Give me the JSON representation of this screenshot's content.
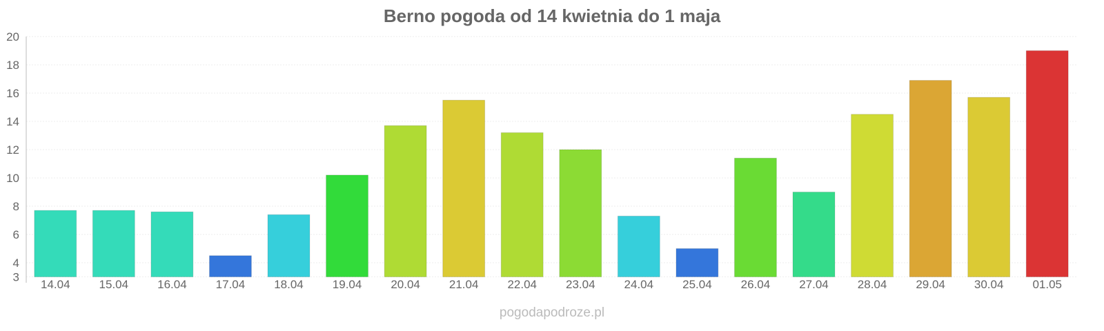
{
  "chart_data": {
    "type": "bar",
    "title": "Berno pogoda od 14 kwietnia do 1 maja",
    "xlabel": "",
    "ylabel": "",
    "ylim": [
      3,
      20
    ],
    "yticks": [
      3,
      4,
      6,
      8,
      10,
      12,
      14,
      16,
      18,
      20
    ],
    "grid": true,
    "categories": [
      "14.04",
      "15.04",
      "16.04",
      "17.04",
      "18.04",
      "19.04",
      "20.04",
      "21.04",
      "22.04",
      "23.04",
      "24.04",
      "25.04",
      "26.04",
      "27.04",
      "28.04",
      "29.04",
      "30.04",
      "01.05"
    ],
    "values": [
      7.7,
      7.7,
      7.6,
      4.5,
      7.4,
      10.2,
      13.7,
      15.5,
      13.2,
      12.0,
      7.3,
      5.0,
      11.4,
      9.0,
      14.5,
      16.9,
      15.7,
      19.0
    ],
    "colors": [
      "#34dbb9",
      "#34dbb9",
      "#34dbb9",
      "#3476db",
      "#36cfdb",
      "#32db3a",
      "#afdb34",
      "#dbca34",
      "#afdb34",
      "#8cdb34",
      "#36cfdb",
      "#3476db",
      "#6adb34",
      "#34db8a",
      "#cfdb34",
      "#dba634",
      "#dbca34",
      "#db3434"
    ]
  },
  "footer": "pogodapodroze.pl"
}
